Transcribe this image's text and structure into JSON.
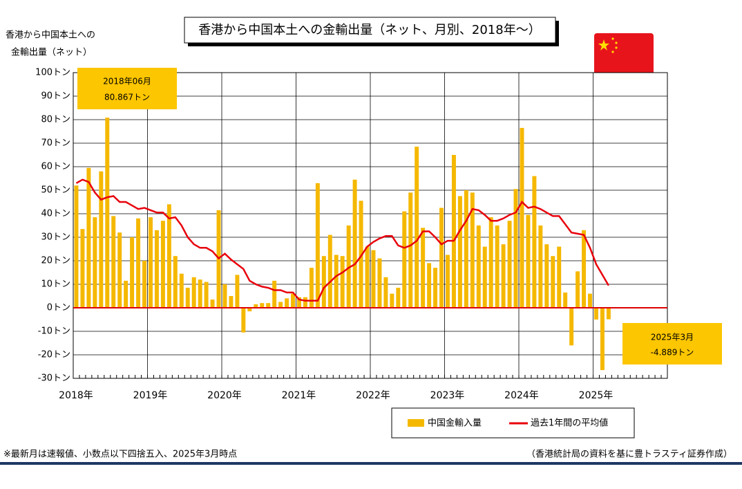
{
  "chart_data": {
    "type": "bar_line",
    "title": "香港から中国本土への金輸出量（ネット、月別、2018年～）",
    "y_label": [
      "香港から中国本土への",
      "金輸出量（ネット）"
    ],
    "categories": [
      "2018年",
      null,
      null,
      null,
      null,
      null,
      null,
      null,
      null,
      null,
      null,
      null,
      "2019年",
      null,
      null,
      null,
      null,
      null,
      null,
      null,
      null,
      null,
      null,
      null,
      "2020年",
      null,
      null,
      null,
      null,
      null,
      null,
      null,
      null,
      null,
      null,
      null,
      "2021年",
      null,
      null,
      null,
      null,
      null,
      null,
      null,
      null,
      null,
      null,
      null,
      "2022年",
      null,
      null,
      null,
      null,
      null,
      null,
      null,
      null,
      null,
      null,
      null,
      "2023年",
      null,
      null,
      null,
      null,
      null,
      null,
      null,
      null,
      null,
      null,
      null,
      "2024年",
      null,
      null,
      null,
      null,
      null,
      null,
      null,
      null,
      null,
      null,
      null,
      "2025年",
      null,
      null,
      null,
      null,
      null,
      null,
      null,
      null,
      null,
      null,
      null
    ],
    "series": [
      {
        "name": "中国金輸入量",
        "kind": "bar",
        "color": "#f5b800",
        "values": [
          52,
          33.5,
          59.5,
          38.5,
          58,
          80.867,
          39,
          32,
          11.5,
          30,
          38,
          20,
          38.5,
          33,
          37,
          44,
          22,
          14.5,
          8.5,
          13,
          12,
          11,
          3.5,
          41.5,
          10,
          5,
          14,
          -10.5,
          -1.5,
          1.5,
          2,
          2,
          11.5,
          2.5,
          4,
          6,
          4.5,
          4.5,
          17,
          53,
          22,
          31,
          22.5,
          22,
          35,
          54.5,
          45.5,
          26,
          24.5,
          21,
          13,
          6,
          8.5,
          41,
          49,
          68.5,
          34,
          19,
          17,
          42.5,
          22.5,
          65,
          47.5,
          50,
          49,
          35,
          26,
          38.5,
          35,
          27,
          37,
          50.5,
          76.5,
          39.5,
          56,
          35,
          27,
          22,
          26,
          6.5,
          -16,
          15.5,
          33,
          6,
          -5,
          -26.5,
          -4.889,
          null,
          null,
          null,
          null,
          null,
          null,
          null,
          null,
          null
        ]
      },
      {
        "name": "過去1年間の平均値",
        "kind": "line",
        "color": "#e8000b",
        "values": [
          53,
          54.5,
          53.5,
          49,
          46,
          47,
          47.5,
          45,
          45,
          43.5,
          42,
          42.5,
          41.5,
          40.5,
          40.5,
          38,
          38.5,
          35,
          30,
          27,
          25.5,
          25.5,
          24,
          21,
          23,
          20.5,
          18.5,
          16.5,
          11.5,
          10,
          9,
          8.5,
          7.5,
          7.5,
          6.5,
          6.5,
          3.5,
          3,
          3,
          3,
          8.5,
          11,
          13.5,
          15,
          17,
          18.5,
          22,
          26,
          28,
          29.5,
          30.5,
          30.5,
          26.5,
          25.5,
          26.5,
          28.5,
          32.5,
          32.5,
          30,
          27,
          28.5,
          28.5,
          33,
          37,
          42,
          41.5,
          39.5,
          37,
          37,
          38,
          39.5,
          40.5,
          45,
          42.5,
          43,
          42,
          40.5,
          39,
          39,
          35.5,
          32,
          31.5,
          31,
          25.5,
          18.5,
          14,
          9.5,
          null,
          null,
          null,
          null,
          null,
          null,
          null,
          null,
          null
        ]
      }
    ],
    "ylim": [
      -30,
      100
    ],
    "yticks": [
      {
        "value": -30,
        "label": "-30トン"
      },
      {
        "value": -20,
        "label": "-20トン"
      },
      {
        "value": -10,
        "label": "-10トン"
      },
      {
        "value": 0,
        "label": "0トン"
      },
      {
        "value": 10,
        "label": "10トン"
      },
      {
        "value": 20,
        "label": "20トン"
      },
      {
        "value": 30,
        "label": "30トン"
      },
      {
        "value": 40,
        "label": "40トン"
      },
      {
        "value": 50,
        "label": "50トン"
      },
      {
        "value": 60,
        "label": "60トン"
      },
      {
        "value": 70,
        "label": "70トン"
      },
      {
        "value": 80,
        "label": "80トン"
      },
      {
        "value": 90,
        "label": "90トン"
      },
      {
        "value": 100,
        "label": "100トン"
      }
    ],
    "grid": true,
    "annotations": [
      [
        "2018年06月",
        "80.867トン"
      ],
      [
        "2025年3月",
        "-4.889トン"
      ]
    ],
    "footnote_left": "※最新月は速報値、小数点以下四捨五入、2025年3月時点",
    "footnote_right": "（香港統計局の資料を基に豊トラスティ証券作成）"
  }
}
